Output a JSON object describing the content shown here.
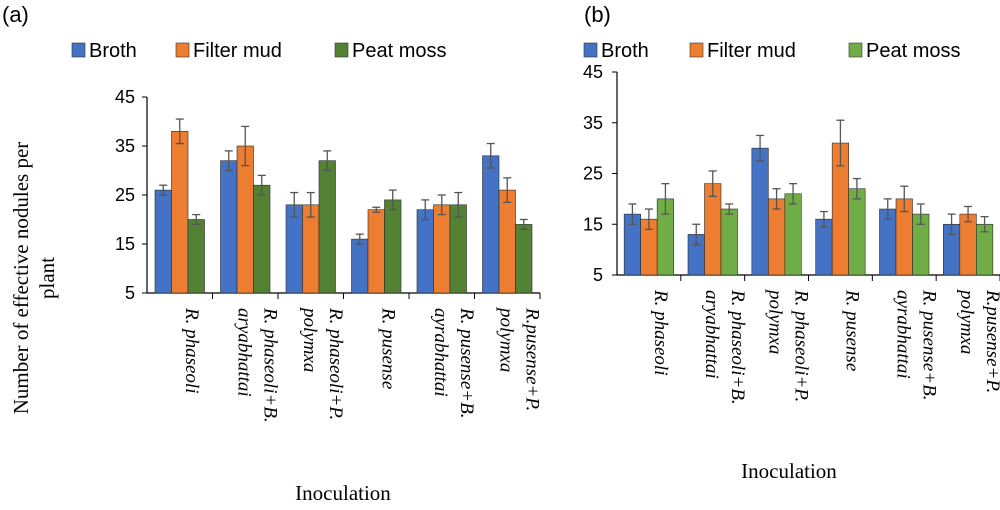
{
  "chart_data": [
    {
      "type": "bar",
      "panel_label": "(a)",
      "xlabel": "Inoculation",
      "ylabel_lines": [
        "Number of effective nodules per",
        "plant"
      ],
      "ylim": [
        5,
        45
      ],
      "yticks": [
        5,
        15,
        25,
        35,
        45
      ],
      "legend_position": "top",
      "categories": [
        [
          "R. phaseoli"
        ],
        [
          "R. phaseoli+B.",
          "aryabhattai"
        ],
        [
          "R. phaseoli+P.",
          "polymxa"
        ],
        [
          "R. pusense"
        ],
        [
          "R. pusense+B.",
          "ayrabhattai"
        ],
        [
          "R.pusense+P.",
          "polymxa"
        ]
      ],
      "series": [
        {
          "name": "Broth",
          "color": "#4472C4",
          "values": [
            26,
            32,
            23,
            16,
            22,
            33
          ],
          "errors": [
            1,
            2,
            2.5,
            1,
            2,
            2.5
          ]
        },
        {
          "name": "Filter mud",
          "color": "#ED7D31",
          "values": [
            38,
            35,
            23,
            22,
            23,
            26
          ],
          "errors": [
            2.5,
            4,
            2.5,
            0.5,
            2,
            2.5
          ]
        },
        {
          "name": "Peat moss",
          "color": "#548235",
          "values": [
            20,
            27,
            32,
            24,
            23,
            19
          ],
          "errors": [
            1,
            2,
            2,
            2,
            2.5,
            1
          ]
        }
      ]
    },
    {
      "type": "bar",
      "panel_label": "(b)",
      "xlabel": "Inoculation",
      "ylim": [
        5,
        45
      ],
      "yticks": [
        5,
        15,
        25,
        35,
        45
      ],
      "legend_position": "top",
      "categories": [
        [
          "R. phaseoli"
        ],
        [
          "R. phaseoli+B.",
          "aryabhattai"
        ],
        [
          "R. phaseoli+P.",
          "polymxa"
        ],
        [
          "R. pusense"
        ],
        [
          "R. pusense+B.",
          "ayrabhattai"
        ],
        [
          "R.pusense+P.",
          "polymxa"
        ]
      ],
      "series": [
        {
          "name": "Broth",
          "color": "#4472C4",
          "values": [
            17,
            13,
            30,
            16,
            18,
            15
          ],
          "errors": [
            2,
            2,
            2.5,
            1.5,
            2,
            2
          ]
        },
        {
          "name": "Filter mud",
          "color": "#ED7D31",
          "values": [
            16,
            23,
            20,
            31,
            20,
            17
          ],
          "errors": [
            2,
            2.5,
            2,
            4.5,
            2.5,
            1.5
          ]
        },
        {
          "name": "Peat moss",
          "color": "#70AD47",
          "values": [
            20,
            18,
            21,
            22,
            17,
            15
          ],
          "errors": [
            3,
            1,
            2,
            2,
            2,
            1.5
          ]
        }
      ]
    }
  ]
}
